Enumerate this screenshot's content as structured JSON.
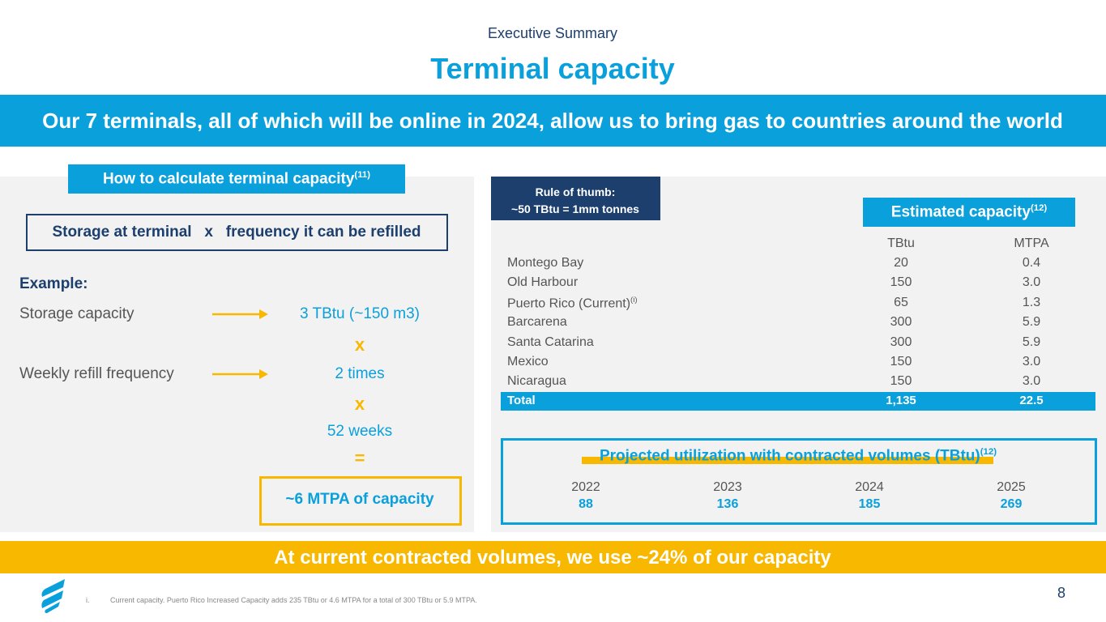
{
  "header": {
    "section": "Executive Summary",
    "title": "Terminal capacity"
  },
  "banner": "Our 7 terminals, all of which will be online in 2024, allow us to bring gas to countries around the world",
  "calculation": {
    "heading": "How to calculate terminal capacity",
    "heading_note": "(11)",
    "formula": "Storage at terminal   x   frequency it can be refilled",
    "example_label": "Example:",
    "storage_label": "Storage capacity",
    "storage_value": "3 TBtu (~150 m3)",
    "times_1": "x",
    "refill_label": "Weekly refill frequency",
    "refill_value": "2 times",
    "times_2": "x",
    "weeks": "52 weeks",
    "equals": "=",
    "result": "~6 MTPA of capacity"
  },
  "rule_of_thumb": [
    "Rule of thumb:",
    "~50 TBtu = 1mm tonnes"
  ],
  "capacity_table": {
    "heading": "Estimated capacity",
    "heading_note": "(12)",
    "columns": [
      "TBtu",
      "MTPA"
    ],
    "rows": [
      {
        "name": "Montego Bay",
        "tbtu": "20",
        "mtpa": "0.4"
      },
      {
        "name": "Old Harbour",
        "tbtu": "150",
        "mtpa": "3.0"
      },
      {
        "name": "Puerto Rico (Current)",
        "note": "(i)",
        "tbtu": "65",
        "mtpa": "1.3"
      },
      {
        "name": "Barcarena",
        "tbtu": "300",
        "mtpa": "5.9"
      },
      {
        "name": "Santa Catarina",
        "tbtu": "300",
        "mtpa": "5.9"
      },
      {
        "name": "Mexico",
        "tbtu": "150",
        "mtpa": "3.0"
      },
      {
        "name": "Nicaragua",
        "tbtu": "150",
        "mtpa": "3.0"
      }
    ],
    "total": {
      "name": "Total",
      "tbtu": "1,135",
      "mtpa": "22.5"
    }
  },
  "utilization": {
    "heading": "Projected utilization with contracted volumes (TBtu)",
    "heading_note": "(12)",
    "years": [
      "2022",
      "2023",
      "2024",
      "2025"
    ],
    "values": [
      "88",
      "136",
      "185",
      "269"
    ]
  },
  "conclusion": "At current contracted volumes, we use ~24% of our capacity",
  "footnote": {
    "marker": "i.",
    "text": "Current capacity. Puerto Rico Increased Capacity adds 235 TBtu or 4.6 MTPA for a total of 300 TBtu or 5.9 MTPA."
  },
  "page_number": "8"
}
